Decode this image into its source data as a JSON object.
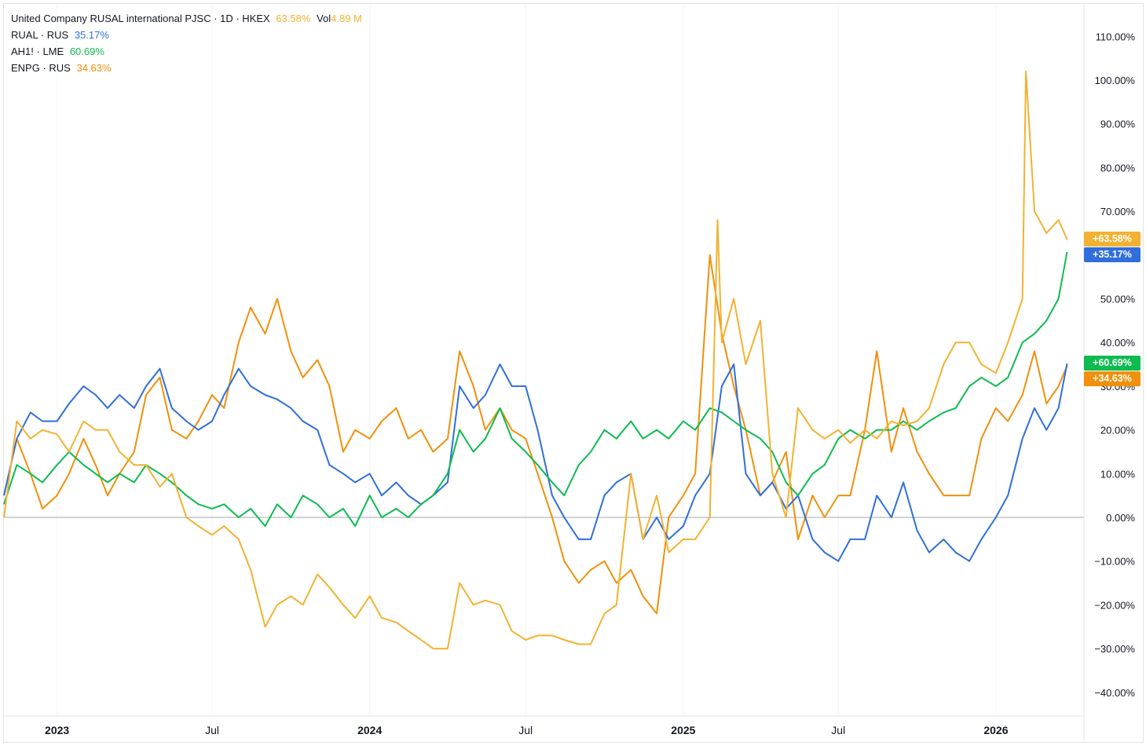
{
  "legend": {
    "main": {
      "symbol": "United Company RUSAL international PJSC · 1D · HKEX",
      "change": "63.58%",
      "vol_label": "Vol",
      "vol_value": "4.89 M"
    },
    "rows": [
      {
        "symbol": "RUAL · RUS",
        "change": "35.17%"
      },
      {
        "symbol": "AH1! · LME",
        "change": "60.69%"
      },
      {
        "symbol": "ENPG · RUS",
        "change": "34.63%"
      }
    ]
  },
  "badges": [
    {
      "text": "+63.58%",
      "color": "#f2b231"
    },
    {
      "text": "+60.69%",
      "color": "#0dbb4f"
    },
    {
      "text": "+35.17%",
      "color": "#2f6fdb"
    },
    {
      "text": "+34.63%",
      "color": "#f0900b"
    }
  ],
  "chart_data": {
    "type": "line",
    "y_unit": "%",
    "ylim": [
      -45,
      115
    ],
    "y_ticks": [
      "110.00%",
      "100.00%",
      "90.00%",
      "80.00%",
      "70.00%",
      "60.00%",
      "50.00%",
      "40.00%",
      "30.00%",
      "20.00%",
      "10.00%",
      "0.00%",
      "−10.00%",
      "−20.00%",
      "−30.00%",
      "−40.00%"
    ],
    "x_ticks": [
      {
        "label": "2023",
        "date": "2023-01-01",
        "bold": true
      },
      {
        "label": "Jul",
        "date": "2023-07-01",
        "bold": false
      },
      {
        "label": "2024",
        "date": "2024-01-01",
        "bold": true
      },
      {
        "label": "Jul",
        "date": "2024-07-01",
        "bold": false
      },
      {
        "label": "2025",
        "date": "2025-01-01",
        "bold": true
      },
      {
        "label": "Jul",
        "date": "2025-07-01",
        "bold": false
      },
      {
        "label": "2026",
        "date": "2026-01-01",
        "bold": true
      }
    ],
    "x_range": [
      "2022-10-31",
      "2026-03-31"
    ],
    "series": [
      {
        "name": "United Company RUSAL international PJSC · 1D · HKEX",
        "color": "#f2b231",
        "x": [
          "2022-10-31",
          "2022-11-15",
          "2022-12-01",
          "2022-12-15",
          "2023-01-01",
          "2023-01-15",
          "2023-02-01",
          "2023-02-15",
          "2023-03-01",
          "2023-03-15",
          "2023-04-01",
          "2023-04-15",
          "2023-05-01",
          "2023-05-15",
          "2023-06-01",
          "2023-06-15",
          "2023-07-01",
          "2023-07-15",
          "2023-08-01",
          "2023-08-15",
          "2023-09-01",
          "2023-09-15",
          "2023-10-01",
          "2023-10-15",
          "2023-11-01",
          "2023-11-15",
          "2023-12-01",
          "2023-12-15",
          "2024-01-01",
          "2024-01-15",
          "2024-02-01",
          "2024-02-15",
          "2024-03-01",
          "2024-03-15",
          "2024-04-01",
          "2024-04-15",
          "2024-05-01",
          "2024-05-15",
          "2024-06-01",
          "2024-06-15",
          "2024-07-01",
          "2024-07-15",
          "2024-08-01",
          "2024-08-15",
          "2024-09-01",
          "2024-09-15",
          "2024-10-01",
          "2024-10-15",
          "2024-11-01",
          "2024-11-15",
          "2024-12-01",
          "2024-12-15",
          "2025-01-01",
          "2025-01-15",
          "2025-02-01",
          "2025-02-10",
          "2025-02-15",
          "2025-03-01",
          "2025-03-15",
          "2025-04-01",
          "2025-04-15",
          "2025-05-01",
          "2025-05-15",
          "2025-06-01",
          "2025-06-15",
          "2025-07-01",
          "2025-07-15",
          "2025-08-01",
          "2025-08-15",
          "2025-09-01",
          "2025-09-15",
          "2025-10-01",
          "2025-10-15",
          "2025-11-01",
          "2025-11-15",
          "2025-12-01",
          "2025-12-15",
          "2026-01-01",
          "2026-01-15",
          "2026-02-01",
          "2026-02-05",
          "2026-02-15",
          "2026-03-01",
          "2026-03-15",
          "2026-03-25"
        ],
        "values": [
          0,
          22,
          18,
          20,
          19,
          15,
          22,
          20,
          20,
          15,
          12,
          12,
          7,
          10,
          0,
          -2,
          -4,
          -2,
          -5,
          -12,
          -25,
          -20,
          -18,
          -20,
          -13,
          -16,
          -20,
          -23,
          -18,
          -23,
          -24,
          -26,
          -28,
          -30,
          -30,
          -15,
          -20,
          -19,
          -20,
          -26,
          -28,
          -27,
          -27,
          -28,
          -29,
          -29,
          -22,
          -20,
          10,
          -5,
          5,
          -8,
          -5,
          -5,
          0,
          68,
          40,
          50,
          35,
          45,
          10,
          0,
          25,
          20,
          18,
          20,
          17,
          20,
          18,
          22,
          21,
          22,
          25,
          35,
          40,
          40,
          35,
          33,
          40,
          50,
          102,
          70,
          65,
          68,
          63.58
        ]
      },
      {
        "name": "RUAL · RUS",
        "color": "#2f6fdb",
        "x": [
          "2022-10-31",
          "2022-11-15",
          "2022-12-01",
          "2022-12-15",
          "2023-01-01",
          "2023-01-15",
          "2023-02-01",
          "2023-02-15",
          "2023-03-01",
          "2023-03-15",
          "2023-04-01",
          "2023-04-15",
          "2023-05-01",
          "2023-05-15",
          "2023-06-01",
          "2023-06-15",
          "2023-07-01",
          "2023-07-15",
          "2023-08-01",
          "2023-08-15",
          "2023-09-01",
          "2023-09-15",
          "2023-10-01",
          "2023-10-15",
          "2023-11-01",
          "2023-11-15",
          "2023-12-01",
          "2023-12-15",
          "2024-01-01",
          "2024-01-15",
          "2024-02-01",
          "2024-02-15",
          "2024-03-01",
          "2024-03-15",
          "2024-04-01",
          "2024-04-15",
          "2024-05-01",
          "2024-05-15",
          "2024-06-01",
          "2024-06-15",
          "2024-07-01",
          "2024-07-15",
          "2024-08-01",
          "2024-08-15",
          "2024-09-01",
          "2024-09-15",
          "2024-10-01",
          "2024-10-15",
          "2024-11-01",
          "2024-11-15",
          "2024-12-01",
          "2024-12-15",
          "2025-01-01",
          "2025-01-15",
          "2025-02-01",
          "2025-02-15",
          "2025-03-01",
          "2025-03-15",
          "2025-04-01",
          "2025-04-15",
          "2025-05-01",
          "2025-05-15",
          "2025-06-01",
          "2025-06-15",
          "2025-07-01",
          "2025-07-15",
          "2025-08-01",
          "2025-08-15",
          "2025-09-01",
          "2025-09-15",
          "2025-10-01",
          "2025-10-15",
          "2025-11-01",
          "2025-11-15",
          "2025-12-01",
          "2025-12-15",
          "2026-01-01",
          "2026-01-15",
          "2026-02-01",
          "2026-02-15",
          "2026-03-01",
          "2026-03-15",
          "2026-03-25"
        ],
        "values": [
          5,
          18,
          24,
          22,
          22,
          26,
          30,
          28,
          25,
          28,
          25,
          30,
          34,
          25,
          22,
          20,
          22,
          28,
          34,
          30,
          28,
          27,
          25,
          22,
          20,
          12,
          10,
          8,
          10,
          5,
          8,
          5,
          3,
          5,
          8,
          30,
          25,
          28,
          35,
          30,
          30,
          20,
          5,
          0,
          -5,
          -5,
          5,
          8,
          10,
          -5,
          0,
          -5,
          -2,
          5,
          10,
          30,
          35,
          10,
          5,
          8,
          2,
          5,
          -5,
          -8,
          -10,
          -5,
          -5,
          5,
          0,
          8,
          -3,
          -8,
          -5,
          -8,
          -10,
          -5,
          0,
          5,
          18,
          25,
          20,
          25,
          35.17
        ]
      },
      {
        "name": "AH1! · LME",
        "color": "#0dbb4f",
        "x": [
          "2022-10-31",
          "2022-11-15",
          "2022-12-01",
          "2022-12-15",
          "2023-01-01",
          "2023-01-15",
          "2023-02-01",
          "2023-02-15",
          "2023-03-01",
          "2023-03-15",
          "2023-04-01",
          "2023-04-15",
          "2023-05-01",
          "2023-05-15",
          "2023-06-01",
          "2023-06-15",
          "2023-07-01",
          "2023-07-15",
          "2023-08-01",
          "2023-08-15",
          "2023-09-01",
          "2023-09-15",
          "2023-10-01",
          "2023-10-15",
          "2023-11-01",
          "2023-11-15",
          "2023-12-01",
          "2023-12-15",
          "2024-01-01",
          "2024-01-15",
          "2024-02-01",
          "2024-02-15",
          "2024-03-01",
          "2024-03-15",
          "2024-04-01",
          "2024-04-15",
          "2024-05-01",
          "2024-05-15",
          "2024-06-01",
          "2024-06-15",
          "2024-07-01",
          "2024-07-15",
          "2024-08-01",
          "2024-08-15",
          "2024-09-01",
          "2024-09-15",
          "2024-10-01",
          "2024-10-15",
          "2024-11-01",
          "2024-11-15",
          "2024-12-01",
          "2024-12-15",
          "2025-01-01",
          "2025-01-15",
          "2025-02-01",
          "2025-02-15",
          "2025-03-01",
          "2025-03-15",
          "2025-04-01",
          "2025-04-15",
          "2025-05-01",
          "2025-05-15",
          "2025-06-01",
          "2025-06-15",
          "2025-07-01",
          "2025-07-15",
          "2025-08-01",
          "2025-08-15",
          "2025-09-01",
          "2025-09-15",
          "2025-10-01",
          "2025-10-15",
          "2025-11-01",
          "2025-11-15",
          "2025-12-01",
          "2025-12-15",
          "2026-01-01",
          "2026-01-15",
          "2026-02-01",
          "2026-02-15",
          "2026-03-01",
          "2026-03-15",
          "2026-03-25"
        ],
        "values": [
          3,
          12,
          10,
          8,
          12,
          15,
          12,
          10,
          8,
          10,
          8,
          12,
          10,
          8,
          5,
          3,
          2,
          3,
          0,
          2,
          -2,
          3,
          0,
          5,
          3,
          0,
          2,
          -2,
          5,
          0,
          2,
          0,
          3,
          5,
          10,
          20,
          15,
          18,
          25,
          18,
          15,
          12,
          8,
          5,
          12,
          15,
          20,
          18,
          22,
          18,
          20,
          18,
          22,
          20,
          25,
          24,
          22,
          20,
          18,
          15,
          8,
          5,
          10,
          12,
          18,
          20,
          18,
          20,
          20,
          22,
          20,
          22,
          24,
          25,
          30,
          32,
          30,
          32,
          40,
          42,
          45,
          50,
          60.69
        ]
      },
      {
        "name": "ENPG · RUS",
        "color": "#f0900b",
        "x": [
          "2022-10-31",
          "2022-11-15",
          "2022-12-01",
          "2022-12-15",
          "2023-01-01",
          "2023-01-15",
          "2023-02-01",
          "2023-02-15",
          "2023-03-01",
          "2023-03-15",
          "2023-04-01",
          "2023-04-15",
          "2023-05-01",
          "2023-05-15",
          "2023-06-01",
          "2023-06-15",
          "2023-07-01",
          "2023-07-15",
          "2023-08-01",
          "2023-08-15",
          "2023-09-01",
          "2023-09-15",
          "2023-10-01",
          "2023-10-15",
          "2023-11-01",
          "2023-11-15",
          "2023-12-01",
          "2023-12-15",
          "2024-01-01",
          "2024-01-15",
          "2024-02-01",
          "2024-02-15",
          "2024-03-01",
          "2024-03-15",
          "2024-04-01",
          "2024-04-15",
          "2024-05-01",
          "2024-05-15",
          "2024-06-01",
          "2024-06-15",
          "2024-07-01",
          "2024-07-15",
          "2024-08-01",
          "2024-08-15",
          "2024-09-01",
          "2024-09-15",
          "2024-10-01",
          "2024-10-15",
          "2024-11-01",
          "2024-11-15",
          "2024-12-01",
          "2024-12-15",
          "2025-01-01",
          "2025-01-15",
          "2025-02-01",
          "2025-02-15",
          "2025-03-01",
          "2025-03-15",
          "2025-04-01",
          "2025-04-15",
          "2025-05-01",
          "2025-05-15",
          "2025-06-01",
          "2025-06-15",
          "2025-07-01",
          "2025-07-15",
          "2025-08-01",
          "2025-08-15",
          "2025-09-01",
          "2025-09-15",
          "2025-10-01",
          "2025-10-15",
          "2025-11-01",
          "2025-11-15",
          "2025-12-01",
          "2025-12-15",
          "2026-01-01",
          "2026-01-15",
          "2026-02-01",
          "2026-02-15",
          "2026-03-01",
          "2026-03-15",
          "2026-03-25"
        ],
        "values": [
          5,
          18,
          10,
          2,
          5,
          10,
          18,
          12,
          5,
          10,
          15,
          28,
          32,
          20,
          18,
          22,
          28,
          25,
          40,
          48,
          42,
          50,
          38,
          32,
          36,
          30,
          15,
          20,
          18,
          22,
          25,
          18,
          20,
          15,
          18,
          38,
          30,
          20,
          25,
          20,
          18,
          10,
          0,
          -10,
          -15,
          -12,
          -10,
          -15,
          -12,
          -18,
          -22,
          0,
          5,
          10,
          60,
          42,
          30,
          20,
          5,
          8,
          15,
          -5,
          5,
          0,
          5,
          5,
          20,
          38,
          15,
          25,
          15,
          10,
          5,
          5,
          5,
          18,
          25,
          22,
          28,
          38,
          26,
          30,
          34.63
        ]
      }
    ]
  }
}
